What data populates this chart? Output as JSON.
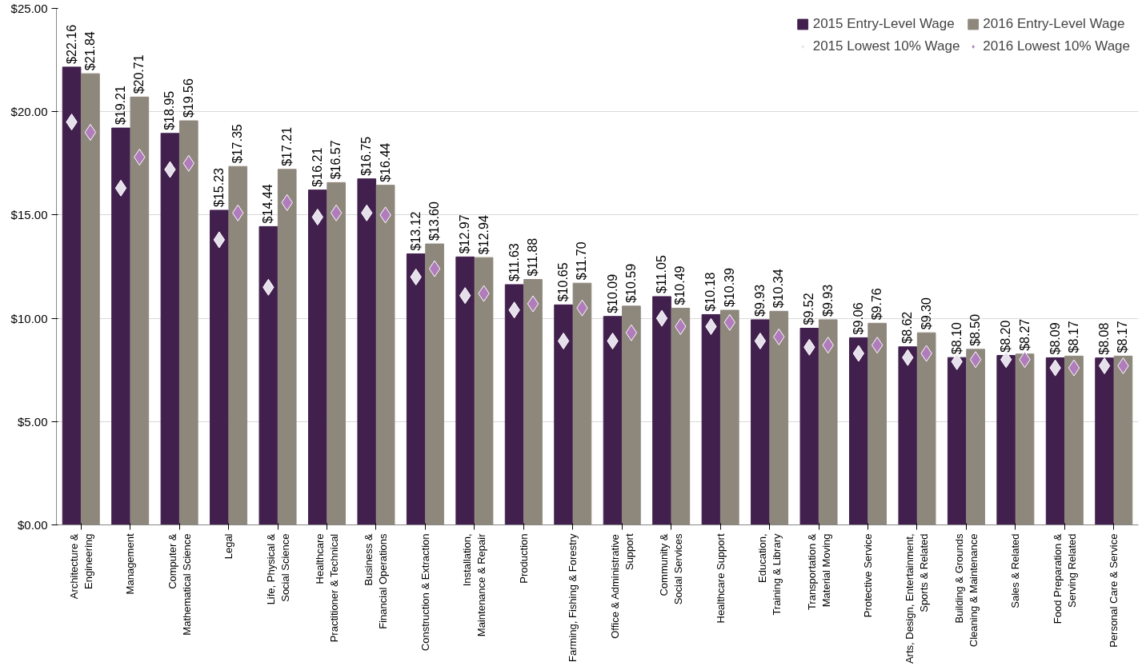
{
  "chart_data": {
    "type": "bar",
    "categories": [
      "Architecture &\nEngineering",
      "Management",
      "Computer &\nMathematical Science",
      "Legal",
      "Life, Physical &\nSocial Science",
      "Healthcare\nPractitioner & Technical",
      "Business &\nFinancial Operations",
      "Construction & Extraction",
      "Installation,\nMaintenance & Repair",
      "Production",
      "Farming, Fishing & Forestry",
      "Office & Administrative\nSupport",
      "Community &\nSocial Services",
      "Healthcare Support",
      "Education,\nTraining & Library",
      "Transportation &\nMaterial Moving",
      "Protective Service",
      "Arts, Design, Entertainment,\nSports & Related",
      "Building & Grounds\nCleaning & Maintenance",
      "Sales & Related",
      "Food Preparation &\nServing Related",
      "Personal Care & Service"
    ],
    "series": [
      {
        "name": "2015 Entry-Level Wage",
        "color": "#42204e",
        "values": [
          22.16,
          19.21,
          18.95,
          15.23,
          14.44,
          16.21,
          16.75,
          13.12,
          12.97,
          11.63,
          10.65,
          10.09,
          11.05,
          10.18,
          9.93,
          9.52,
          9.06,
          8.62,
          8.1,
          8.2,
          8.09,
          8.08
        ],
        "value_labels": [
          "$22.16",
          "$19.21",
          "$18.95",
          "$15.23",
          "$14.44",
          "$16.21",
          "$16.75",
          "$13.12",
          "$12.97",
          "$11.63",
          "$10.65",
          "$10.09",
          "$11.05",
          "$10.18",
          "$9.93",
          "$9.52",
          "$9.06",
          "$8.62",
          "$8.10",
          "$8.20",
          "$8.09",
          "$8.08"
        ]
      },
      {
        "name": "2016 Entry-Level Wage",
        "color": "#8e877c",
        "values": [
          21.84,
          20.71,
          19.56,
          17.35,
          17.21,
          16.57,
          16.44,
          13.6,
          12.94,
          11.88,
          11.7,
          10.59,
          10.49,
          10.39,
          10.34,
          9.93,
          9.76,
          9.3,
          8.5,
          8.27,
          8.17,
          8.17
        ],
        "value_labels": [
          "$21.84",
          "$20.71",
          "$19.56",
          "$17.35",
          "$17.21",
          "$16.57",
          "$16.44",
          "$13.60",
          "$12.94",
          "$11.88",
          "$11.70",
          "$10.59",
          "$10.49",
          "$10.39",
          "$10.34",
          "$9.93",
          "$9.76",
          "$9.30",
          "$8.50",
          "$8.27",
          "$8.17",
          "$8.17"
        ]
      },
      {
        "name": "2015 Lowest 10% Wage",
        "type": "scatter",
        "marker": "diamond",
        "color": "#e6e0ec",
        "values": [
          19.5,
          16.3,
          17.2,
          13.8,
          11.5,
          14.9,
          15.1,
          12.0,
          11.1,
          10.4,
          8.9,
          8.9,
          10.0,
          9.6,
          8.9,
          8.6,
          8.3,
          8.1,
          7.9,
          8.0,
          7.6,
          7.7
        ]
      },
      {
        "name": "2016 Lowest 10% Wage",
        "type": "scatter",
        "marker": "diamond",
        "color": "#b07cbc",
        "values": [
          19.0,
          17.8,
          17.5,
          15.1,
          15.6,
          15.1,
          15.0,
          12.4,
          11.2,
          10.7,
          10.5,
          9.3,
          9.6,
          9.8,
          9.1,
          8.7,
          8.7,
          8.3,
          8.0,
          8.0,
          7.6,
          7.7
        ]
      }
    ],
    "ylim": [
      0,
      25
    ],
    "yticks": [
      {
        "value": 0,
        "label": "$0.00"
      },
      {
        "value": 5,
        "label": "$5.00"
      },
      {
        "value": 10,
        "label": "$10.00"
      },
      {
        "value": 15,
        "label": "$15.00"
      },
      {
        "value": 20,
        "label": "$20.00"
      },
      {
        "value": 25,
        "label": "$25.00"
      }
    ],
    "grid": "y",
    "legend": "top right"
  }
}
